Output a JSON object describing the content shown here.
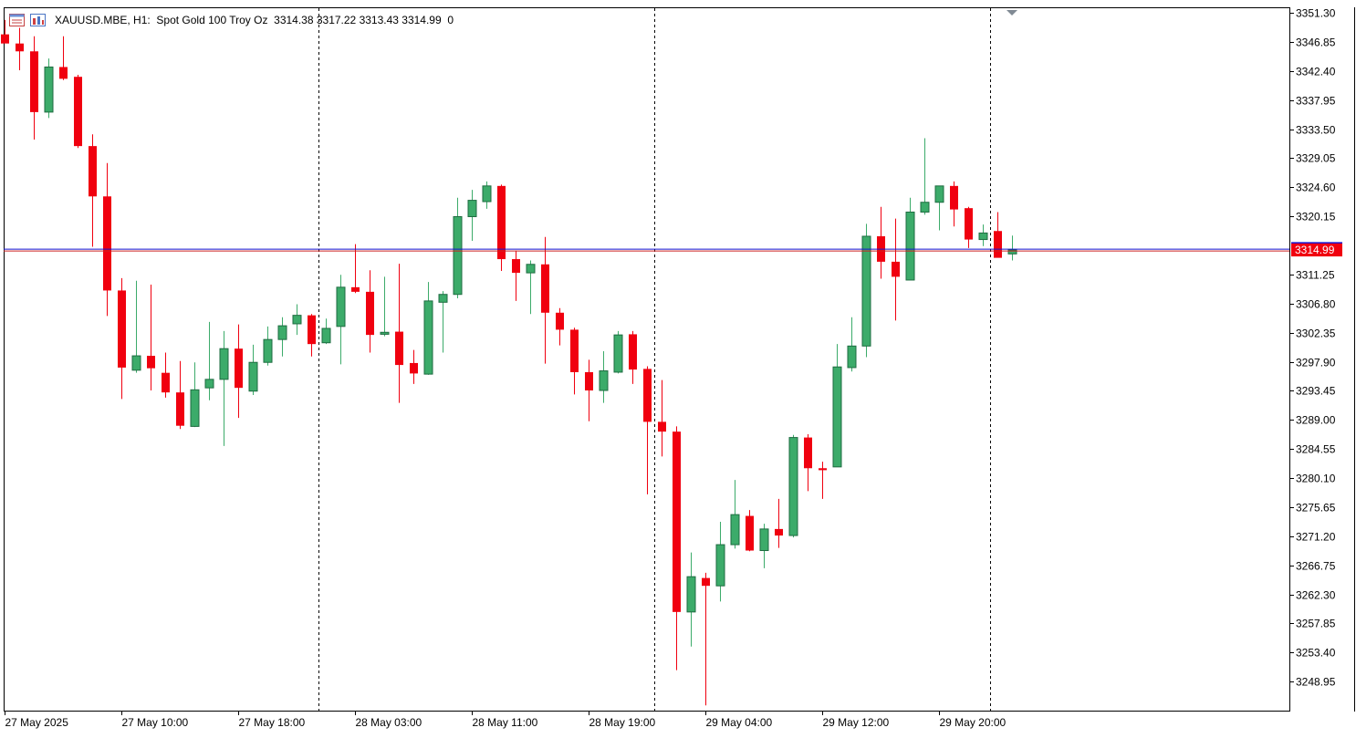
{
  "header": {
    "symbol": "XAUUSD.MBE",
    "timeframe": "H1",
    "description": "Spot Gold 100 Troy Oz",
    "ohlc": "3314.38 3317.22 3313.43 3314.99",
    "volume": "0",
    "icons": [
      "chart-window-icon",
      "indicator-list-icon"
    ]
  },
  "colors": {
    "bull": "#3cab6a",
    "bear": "#f0000f",
    "bull_border": "#1e6b40",
    "grid": "#000000",
    "bid_line": "#1414d2",
    "ask_line": "#cc2020",
    "price_label_bg": "#f0000f",
    "price_label_text": "#ffffff"
  },
  "chart_data": {
    "type": "candlestick",
    "current_price": 3314.99,
    "current_price_label": "3314.99",
    "ylim": [
      3244.5,
      3352.0
    ],
    "y_ticks": [
      "3351.30",
      "3346.85",
      "3342.40",
      "3337.95",
      "3333.50",
      "3329.05",
      "3324.60",
      "3320.15",
      "3311.25",
      "3306.80",
      "3302.35",
      "3297.90",
      "3293.45",
      "3289.00",
      "3284.55",
      "3280.10",
      "3275.65",
      "3271.20",
      "3266.75",
      "3262.30",
      "3257.85",
      "3253.40",
      "3248.95"
    ],
    "x_ticks": [
      {
        "index": 0,
        "label": "27 May 2025"
      },
      {
        "index": 8,
        "label": "27 May 10:00"
      },
      {
        "index": 16,
        "label": "27 May 18:00"
      },
      {
        "index": 24,
        "label": "28 May 03:00"
      },
      {
        "index": 32,
        "label": "28 May 11:00"
      },
      {
        "index": 40,
        "label": "28 May 19:00"
      },
      {
        "index": 48,
        "label": "29 May 04:00"
      },
      {
        "index": 56,
        "label": "29 May 12:00"
      },
      {
        "index": 64,
        "label": "29 May 20:00"
      }
    ],
    "day_separators": [
      21.5,
      44.5,
      67.5
    ],
    "candles": [
      {
        "o": 3348.0,
        "h": 3350.2,
        "l": 3346.9,
        "c": 3346.6
      },
      {
        "o": 3346.6,
        "h": 3349.0,
        "l": 3342.5,
        "c": 3345.4
      },
      {
        "o": 3345.4,
        "h": 3347.7,
        "l": 3331.9,
        "c": 3336.1
      },
      {
        "o": 3336.1,
        "h": 3344.3,
        "l": 3335.2,
        "c": 3343.0
      },
      {
        "o": 3343.0,
        "h": 3347.7,
        "l": 3341.0,
        "c": 3341.2
      },
      {
        "o": 3341.5,
        "h": 3341.8,
        "l": 3330.6,
        "c": 3330.9
      },
      {
        "o": 3330.9,
        "h": 3332.7,
        "l": 3315.5,
        "c": 3323.2
      },
      {
        "o": 3323.2,
        "h": 3328.3,
        "l": 3304.9,
        "c": 3308.8
      },
      {
        "o": 3308.8,
        "h": 3310.7,
        "l": 3292.2,
        "c": 3297.0
      },
      {
        "o": 3296.6,
        "h": 3310.3,
        "l": 3296.2,
        "c": 3298.8
      },
      {
        "o": 3298.8,
        "h": 3309.7,
        "l": 3293.5,
        "c": 3296.9
      },
      {
        "o": 3296.2,
        "h": 3299.3,
        "l": 3292.4,
        "c": 3293.2
      },
      {
        "o": 3293.2,
        "h": 3298.0,
        "l": 3287.6,
        "c": 3288.1
      },
      {
        "o": 3288.0,
        "h": 3297.8,
        "l": 3287.9,
        "c": 3293.6
      },
      {
        "o": 3293.9,
        "h": 3304.0,
        "l": 3292.0,
        "c": 3295.2
      },
      {
        "o": 3295.2,
        "h": 3302.6,
        "l": 3285.0,
        "c": 3299.9
      },
      {
        "o": 3299.9,
        "h": 3303.6,
        "l": 3289.3,
        "c": 3293.9
      },
      {
        "o": 3293.4,
        "h": 3300.5,
        "l": 3292.8,
        "c": 3297.8
      },
      {
        "o": 3297.8,
        "h": 3303.3,
        "l": 3297.3,
        "c": 3301.3
      },
      {
        "o": 3301.3,
        "h": 3304.7,
        "l": 3298.7,
        "c": 3303.4
      },
      {
        "o": 3303.7,
        "h": 3306.7,
        "l": 3302.0,
        "c": 3305.0
      },
      {
        "o": 3305.0,
        "h": 3305.2,
        "l": 3298.7,
        "c": 3300.6
      },
      {
        "o": 3300.8,
        "h": 3304.5,
        "l": 3300.6,
        "c": 3303.0
      },
      {
        "o": 3303.3,
        "h": 3311.2,
        "l": 3297.5,
        "c": 3309.3
      },
      {
        "o": 3309.3,
        "h": 3315.9,
        "l": 3308.4,
        "c": 3308.6
      },
      {
        "o": 3308.6,
        "h": 3311.9,
        "l": 3299.3,
        "c": 3302.0
      },
      {
        "o": 3302.1,
        "h": 3310.9,
        "l": 3301.8,
        "c": 3302.4
      },
      {
        "o": 3302.5,
        "h": 3312.9,
        "l": 3291.6,
        "c": 3297.4
      },
      {
        "o": 3297.7,
        "h": 3299.7,
        "l": 3294.5,
        "c": 3296.1
      },
      {
        "o": 3296.0,
        "h": 3310.1,
        "l": 3295.9,
        "c": 3307.2
      },
      {
        "o": 3307.0,
        "h": 3308.7,
        "l": 3299.3,
        "c": 3308.2
      },
      {
        "o": 3308.2,
        "h": 3323.0,
        "l": 3307.6,
        "c": 3320.1
      },
      {
        "o": 3320.1,
        "h": 3324.2,
        "l": 3316.4,
        "c": 3322.6
      },
      {
        "o": 3322.4,
        "h": 3325.5,
        "l": 3321.3,
        "c": 3324.8
      },
      {
        "o": 3324.8,
        "h": 3325.0,
        "l": 3311.8,
        "c": 3313.6
      },
      {
        "o": 3313.6,
        "h": 3314.9,
        "l": 3307.2,
        "c": 3311.5
      },
      {
        "o": 3311.5,
        "h": 3313.4,
        "l": 3305.2,
        "c": 3312.8
      },
      {
        "o": 3312.8,
        "h": 3317.0,
        "l": 3297.6,
        "c": 3305.4
      },
      {
        "o": 3305.4,
        "h": 3306.1,
        "l": 3300.4,
        "c": 3302.8
      },
      {
        "o": 3302.8,
        "h": 3303.1,
        "l": 3292.9,
        "c": 3296.3
      },
      {
        "o": 3296.3,
        "h": 3298.2,
        "l": 3288.8,
        "c": 3293.5
      },
      {
        "o": 3293.5,
        "h": 3299.5,
        "l": 3291.6,
        "c": 3296.5
      },
      {
        "o": 3296.3,
        "h": 3302.6,
        "l": 3296.1,
        "c": 3302.0
      },
      {
        "o": 3302.1,
        "h": 3302.6,
        "l": 3294.5,
        "c": 3296.7
      },
      {
        "o": 3296.8,
        "h": 3297.2,
        "l": 3277.6,
        "c": 3288.7
      },
      {
        "o": 3288.7,
        "h": 3295.1,
        "l": 3283.4,
        "c": 3287.2
      },
      {
        "o": 3287.2,
        "h": 3288.0,
        "l": 3250.7,
        "c": 3259.6
      },
      {
        "o": 3259.6,
        "h": 3268.7,
        "l": 3254.3,
        "c": 3265.0
      },
      {
        "o": 3264.8,
        "h": 3265.6,
        "l": 3245.3,
        "c": 3263.6
      },
      {
        "o": 3263.6,
        "h": 3273.4,
        "l": 3261.2,
        "c": 3269.9
      },
      {
        "o": 3269.9,
        "h": 3279.8,
        "l": 3269.3,
        "c": 3274.5
      },
      {
        "o": 3274.3,
        "h": 3275.2,
        "l": 3268.9,
        "c": 3269.0
      },
      {
        "o": 3269.0,
        "h": 3273.1,
        "l": 3266.3,
        "c": 3272.3
      },
      {
        "o": 3272.3,
        "h": 3276.9,
        "l": 3269.4,
        "c": 3271.3
      },
      {
        "o": 3271.3,
        "h": 3286.7,
        "l": 3271.0,
        "c": 3286.3
      },
      {
        "o": 3286.3,
        "h": 3286.8,
        "l": 3278.1,
        "c": 3281.6
      },
      {
        "o": 3281.6,
        "h": 3282.6,
        "l": 3276.9,
        "c": 3281.3
      },
      {
        "o": 3281.8,
        "h": 3300.6,
        "l": 3281.8,
        "c": 3297.1
      },
      {
        "o": 3297.0,
        "h": 3304.7,
        "l": 3296.4,
        "c": 3300.3
      },
      {
        "o": 3300.3,
        "h": 3319.0,
        "l": 3298.6,
        "c": 3317.1
      },
      {
        "o": 3317.1,
        "h": 3321.6,
        "l": 3310.6,
        "c": 3313.2
      },
      {
        "o": 3313.2,
        "h": 3319.8,
        "l": 3304.2,
        "c": 3310.9
      },
      {
        "o": 3310.4,
        "h": 3323.0,
        "l": 3310.4,
        "c": 3320.8
      },
      {
        "o": 3320.8,
        "h": 3332.1,
        "l": 3320.4,
        "c": 3322.3
      },
      {
        "o": 3322.3,
        "h": 3324.6,
        "l": 3318.0,
        "c": 3324.8
      },
      {
        "o": 3324.8,
        "h": 3325.5,
        "l": 3318.6,
        "c": 3321.2
      },
      {
        "o": 3321.4,
        "h": 3321.6,
        "l": 3315.3,
        "c": 3316.6
      },
      {
        "o": 3316.6,
        "h": 3318.9,
        "l": 3315.6,
        "c": 3317.6
      },
      {
        "o": 3317.9,
        "h": 3320.8,
        "l": 3313.9,
        "c": 3313.8
      },
      {
        "o": 3314.4,
        "h": 3317.2,
        "l": 3313.4,
        "c": 3315.0
      }
    ]
  }
}
